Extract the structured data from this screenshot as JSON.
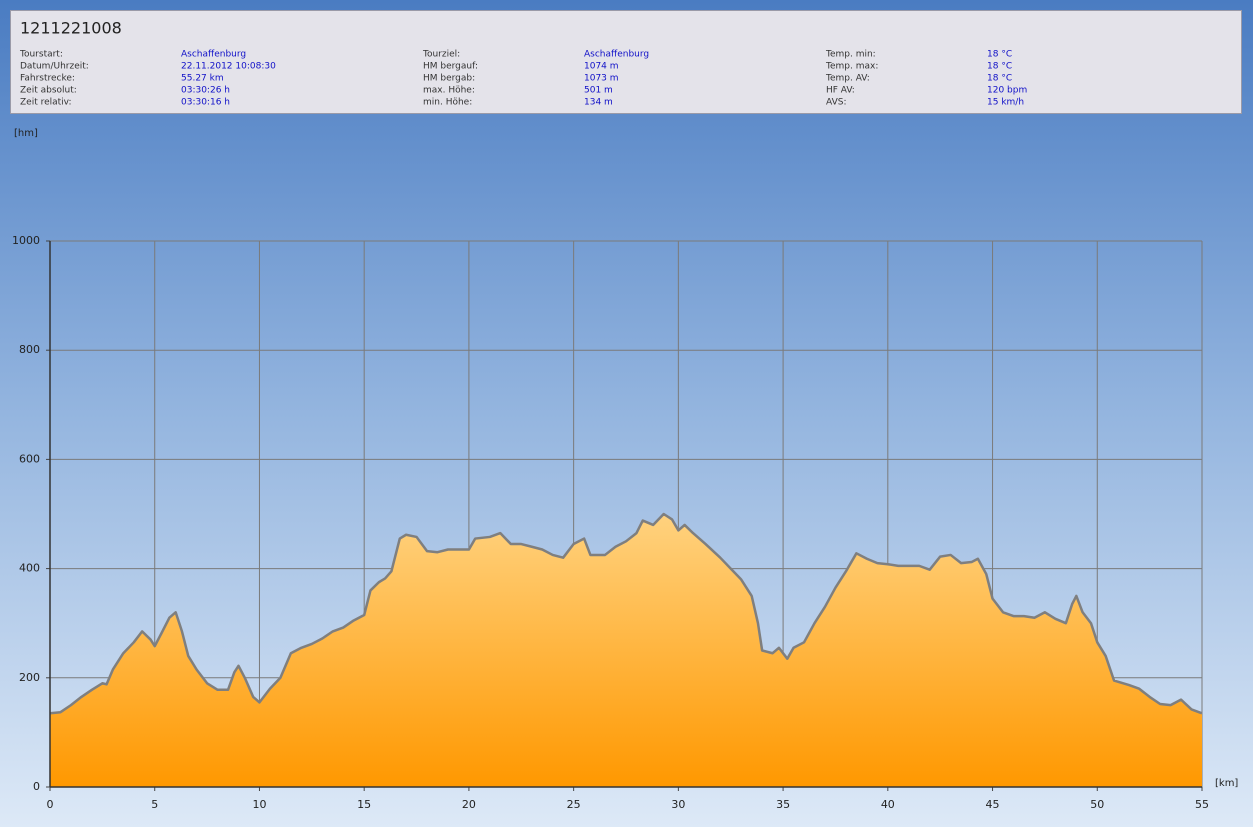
{
  "info": {
    "title": "1211221008",
    "columns": [
      [
        {
          "label": "Tourstart:",
          "value": "Aschaffenburg"
        },
        {
          "label": "Datum/Uhrzeit:",
          "value": "22.11.2012 10:08:30"
        },
        {
          "label": "Fahrstrecke:",
          "value": "55.27 km"
        },
        {
          "label": "Zeit absolut:",
          "value": "03:30:26 h"
        },
        {
          "label": "Zeit relativ:",
          "value": "03:30:16 h"
        }
      ],
      [
        {
          "label": "Tourziel:",
          "value": "Aschaffenburg"
        },
        {
          "label": "HM bergauf:",
          "value": "1074 m"
        },
        {
          "label": "HM bergab:",
          "value": "1073 m"
        },
        {
          "label": "max. Höhe:",
          "value": "501 m"
        },
        {
          "label": "min. Höhe:",
          "value": "134 m"
        }
      ],
      [
        {
          "label": "Temp. min:",
          "value": "18 °C"
        },
        {
          "label": "Temp. max:",
          "value": "18 °C"
        },
        {
          "label": "Temp. AV:",
          "value": "18 °C"
        },
        {
          "label": "HF AV:",
          "value": "120 bpm"
        },
        {
          "label": "AVS:",
          "value": "15 km/h"
        }
      ]
    ]
  },
  "chart_data": {
    "type": "area",
    "y_label": "[hm]",
    "x_label": "[km]",
    "xlim": [
      0,
      55
    ],
    "xticks": [
      0,
      5,
      10,
      15,
      20,
      25,
      30,
      35,
      40,
      45,
      50,
      55
    ],
    "ylim": [
      0,
      1000
    ],
    "yticks": [
      0,
      200,
      400,
      600,
      800,
      1000
    ],
    "grid": true,
    "x": [
      0,
      0.5,
      1,
      1.5,
      2,
      2.5,
      2.7,
      3,
      3.5,
      4,
      4.4,
      4.8,
      5,
      5.3,
      5.7,
      6,
      6.3,
      6.6,
      7,
      7.5,
      8,
      8.5,
      8.8,
      9,
      9.3,
      9.7,
      10,
      10.5,
      11,
      11.5,
      12,
      12.5,
      13,
      13.5,
      14,
      14.5,
      15,
      15.3,
      15.7,
      16,
      16.3,
      16.7,
      17,
      17.5,
      18,
      18.5,
      19,
      20,
      20.3,
      21,
      21.5,
      22,
      22.5,
      23,
      23.5,
      24,
      24.5,
      25,
      25.5,
      25.8,
      26.5,
      27,
      27.5,
      28,
      28.3,
      28.8,
      29.3,
      29.7,
      30,
      30.3,
      30.7,
      31.3,
      32,
      32.5,
      33,
      33.5,
      33.8,
      34,
      34.5,
      34.8,
      35.2,
      35.5,
      36,
      36.5,
      37,
      37.5,
      38,
      38.5,
      39,
      39.5,
      40,
      40.5,
      41,
      41.5,
      42,
      42.5,
      43,
      43.5,
      44,
      44.3,
      44.7,
      45,
      45.5,
      46,
      46.5,
      47,
      47.5,
      48,
      48.5,
      48.8,
      49,
      49.3,
      49.7,
      50,
      50.4,
      50.8,
      51.5,
      52,
      52.5,
      53,
      53.5,
      54,
      54.5,
      55
    ],
    "series": [
      {
        "color": "#ff9800",
        "line_color": "#7f7f7f",
        "values": [
          135,
          137,
          150,
          165,
          178,
          190,
          188,
          215,
          245,
          265,
          285,
          270,
          258,
          280,
          310,
          320,
          285,
          240,
          215,
          190,
          178,
          178,
          210,
          222,
          200,
          165,
          155,
          180,
          200,
          245,
          255,
          262,
          272,
          285,
          292,
          305,
          315,
          360,
          375,
          382,
          395,
          455,
          462,
          458,
          432,
          430,
          435,
          435,
          455,
          458,
          465,
          445,
          445,
          440,
          435,
          425,
          420,
          445,
          455,
          425,
          425,
          440,
          450,
          465,
          488,
          480,
          500,
          490,
          470,
          480,
          465,
          445,
          420,
          400,
          380,
          350,
          300,
          250,
          245,
          255,
          235,
          255,
          265,
          300,
          330,
          365,
          395,
          428,
          418,
          410,
          408,
          405,
          405,
          405,
          398,
          422,
          425,
          410,
          412,
          418,
          390,
          345,
          320,
          313,
          313,
          310,
          320,
          308,
          300,
          335,
          350,
          320,
          300,
          265,
          240,
          195,
          187,
          180,
          165,
          152,
          150,
          160,
          142,
          135
        ]
      }
    ]
  }
}
